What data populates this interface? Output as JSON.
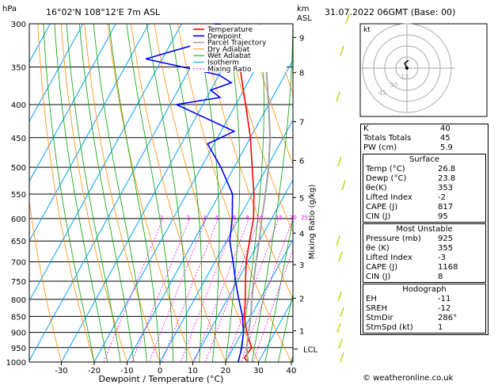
{
  "header": {
    "left": "16°02'N  108°12'E  7m  ASL",
    "right": "31.07.2022  06GMT  (Base: 00)",
    "hpa": "hPa",
    "km": "km",
    "asl": "ASL"
  },
  "chart_data": {
    "type": "line",
    "xlabel": "Dewpoint / Temperature (°C)",
    "right_label": "Mixing Ratio (g/kg)",
    "xlim": [
      -40,
      40
    ],
    "x_ticks": [
      -30,
      -20,
      -10,
      0,
      10,
      20,
      30,
      40
    ],
    "pressure_ticks": [
      300,
      350,
      400,
      450,
      500,
      550,
      600,
      650,
      700,
      750,
      800,
      850,
      900,
      950,
      1000
    ],
    "km_ticks": [
      {
        "label": "9",
        "p": 315
      },
      {
        "label": "8",
        "p": 357
      },
      {
        "label": "7",
        "p": 425
      },
      {
        "label": "6",
        "p": 488
      },
      {
        "label": "5",
        "p": 557
      },
      {
        "label": "4",
        "p": 632
      },
      {
        "label": "3",
        "p": 707
      },
      {
        "label": "2",
        "p": 797
      },
      {
        "label": "1",
        "p": 895
      }
    ],
    "lcl_label": "LCL",
    "lcl_p": 955,
    "mixing_ratio_labels": [
      "1",
      "2",
      "3",
      "4",
      "6",
      "8",
      "10",
      "15",
      "20",
      "25"
    ],
    "mixing_ratios": [
      1,
      2,
      3,
      4,
      6,
      8,
      10,
      15,
      20,
      25
    ],
    "legend": [
      "Temperature",
      "Dewpoint",
      "Parcel Trajectory",
      "Dry Adiabat",
      "Wet Adiabat",
      "Isotherm",
      "Mixing Ratio"
    ],
    "series": [
      {
        "name": "Temperature",
        "color": "#ff0000",
        "points": [
          [
            1000,
            26.8
          ],
          [
            985,
            25
          ],
          [
            950,
            25.5
          ],
          [
            925,
            23.5
          ],
          [
            900,
            21.5
          ],
          [
            850,
            18
          ],
          [
            800,
            15.5
          ],
          [
            750,
            12.5
          ],
          [
            700,
            9.5
          ],
          [
            650,
            7
          ],
          [
            600,
            4.5
          ],
          [
            550,
            0.5
          ],
          [
            500,
            -4.5
          ],
          [
            450,
            -10
          ],
          [
            400,
            -17
          ],
          [
            350,
            -25
          ],
          [
            300,
            -34
          ]
        ]
      },
      {
        "name": "Dewpoint",
        "color": "#0000ff",
        "points": [
          [
            1000,
            23.8
          ],
          [
            950,
            22.5
          ],
          [
            925,
            21.5
          ],
          [
            900,
            20.5
          ],
          [
            850,
            17.5
          ],
          [
            800,
            13.5
          ],
          [
            750,
            9.5
          ],
          [
            700,
            5.5
          ],
          [
            650,
            1
          ],
          [
            600,
            -2
          ],
          [
            550,
            -6
          ],
          [
            500,
            -14
          ],
          [
            460,
            -22
          ],
          [
            440,
            -16
          ],
          [
            400,
            -38
          ],
          [
            390,
            -26
          ],
          [
            380,
            -30
          ],
          [
            370,
            -25
          ],
          [
            360,
            -30
          ],
          [
            340,
            -55
          ],
          [
            320,
            -40
          ],
          [
            310,
            -37
          ],
          [
            305,
            -32
          ],
          [
            300,
            -40
          ]
        ]
      },
      {
        "name": "Parcel Trajectory",
        "color": "#a0a0a0",
        "points": [
          [
            1000,
            26.8
          ],
          [
            950,
            24
          ],
          [
            925,
            23
          ],
          [
            900,
            22
          ],
          [
            850,
            20
          ],
          [
            800,
            17.5
          ],
          [
            750,
            15
          ],
          [
            700,
            12.5
          ],
          [
            650,
            10
          ],
          [
            600,
            7
          ],
          [
            550,
            4
          ],
          [
            500,
            0.5
          ],
          [
            450,
            -4
          ],
          [
            400,
            -10
          ],
          [
            350,
            -17
          ],
          [
            300,
            -26
          ]
        ]
      }
    ]
  },
  "hodograph": {
    "label": "kt",
    "ring_labels": [
      "12",
      "30",
      "45"
    ]
  },
  "indices": [
    {
      "label": "K",
      "value": "40"
    },
    {
      "label": "Totals Totals",
      "value": "45"
    },
    {
      "label": "PW (cm)",
      "value": "5.9"
    }
  ],
  "surface": {
    "title": "Surface",
    "rows": [
      {
        "label": "Temp (°C)",
        "value": "26.8"
      },
      {
        "label": "Dewp (°C)",
        "value": "23.8"
      },
      {
        "label": "θe(K)",
        "value": "353"
      },
      {
        "label": "Lifted Index",
        "value": "-2"
      },
      {
        "label": "CAPE (J)",
        "value": "817"
      },
      {
        "label": "CIN (J)",
        "value": "95"
      }
    ]
  },
  "most_unstable": {
    "title": "Most Unstable",
    "rows": [
      {
        "label": "Pressure (mb)",
        "value": "925"
      },
      {
        "label": "θe (K)",
        "value": "355"
      },
      {
        "label": "Lifted Index",
        "value": "-3"
      },
      {
        "label": "CAPE (J)",
        "value": "1168"
      },
      {
        "label": "CIN (J)",
        "value": "8"
      }
    ]
  },
  "hodograph_table": {
    "title": "Hodograph",
    "rows": [
      {
        "label": "EH",
        "value": "-11"
      },
      {
        "label": "SREH",
        "value": "-12"
      },
      {
        "label": "StmDir",
        "value": "286°"
      },
      {
        "label": "StmSpd (kt)",
        "value": "1"
      }
    ]
  },
  "copyright": "© weatheronline.co.uk",
  "colors": {
    "temperature": "#ff0000",
    "dewpoint": "#0000ff",
    "parcel": "#a0a0a0",
    "dry_adiabat": "#ff8c00",
    "wet_adiabat": "#00a000",
    "isotherm": "#00a0ff",
    "mixing_ratio": "#ff00ff"
  }
}
